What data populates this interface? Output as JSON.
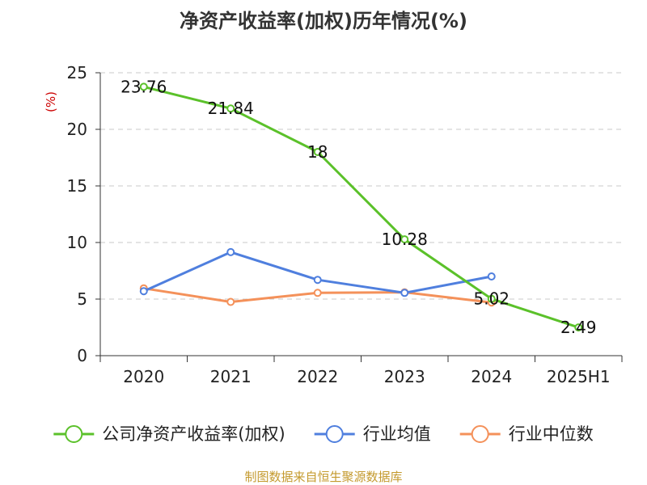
{
  "chart_data": {
    "type": "line",
    "title": "净资产收益率(加权)历年情况(%)",
    "ylabel": "(%)",
    "xlabel": "",
    "categories": [
      "2020",
      "2021",
      "2022",
      "2023",
      "2024",
      "2025H1"
    ],
    "ylim": [
      0,
      25
    ],
    "yticks": [
      0,
      5,
      10,
      15,
      20,
      25
    ],
    "grid": true,
    "legend_position": "bottom",
    "series": [
      {
        "name": "公司净资产收益率(加权)",
        "color": "#5bc12a",
        "values": [
          23.76,
          21.84,
          18,
          10.28,
          5.02,
          2.49
        ],
        "labels": [
          "23.76",
          "21.84",
          "18",
          "10.28",
          "5.02",
          "2.49"
        ]
      },
      {
        "name": "行业均值",
        "color": "#4f7fde",
        "values": [
          5.7,
          9.15,
          6.7,
          5.55,
          7.0,
          null
        ]
      },
      {
        "name": "行业中位数",
        "color": "#f4915a",
        "values": [
          5.95,
          4.75,
          5.55,
          5.6,
          4.7,
          null
        ]
      }
    ]
  },
  "footer": {
    "source": "制图数据来自恒生聚源数据库"
  }
}
